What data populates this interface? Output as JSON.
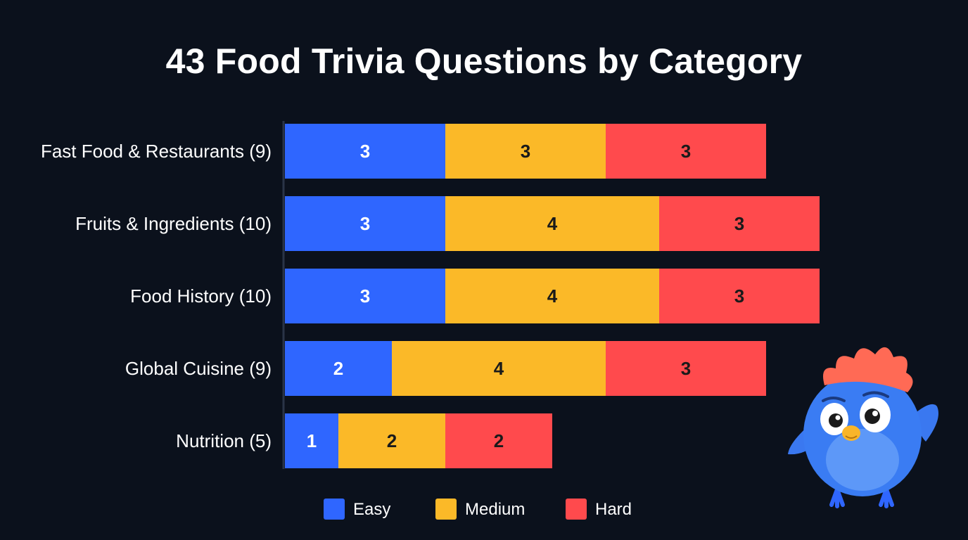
{
  "chart_data": {
    "type": "bar",
    "orientation": "horizontal",
    "stacked": true,
    "title": "43 Food Trivia Questions by Category",
    "categories": [
      "Fast Food & Restaurants (9)",
      "Fruits & Ingredients (10)",
      "Food History (10)",
      "Global Cuisine (9)",
      "Nutrition (5)"
    ],
    "series": [
      {
        "name": "Easy",
        "values": [
          3,
          3,
          3,
          2,
          1
        ],
        "color": "#2f66ff",
        "label_color": "#ffffff"
      },
      {
        "name": "Medium",
        "values": [
          3,
          4,
          4,
          4,
          2
        ],
        "color": "#fbb928",
        "label_color": "#1a1a1a"
      },
      {
        "name": "Hard",
        "values": [
          3,
          3,
          3,
          3,
          2
        ],
        "color": "#ff4a4d",
        "label_color": "#1a1a1a"
      }
    ],
    "xlim": [
      0,
      10
    ],
    "legend": "bottom",
    "grid": false,
    "data_labels": true
  },
  "colors": {
    "background": "#0b111c",
    "axis": "#2a3447",
    "text": "#ffffff"
  },
  "decoration": {
    "mascot_icon": "blue-bird-mascot-icon"
  }
}
